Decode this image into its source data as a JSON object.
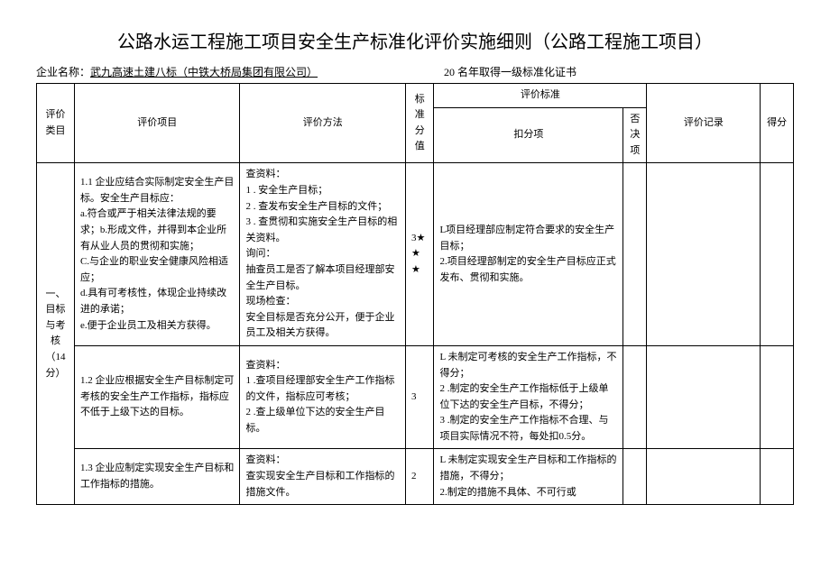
{
  "title": "公路水运工程施工项目安全生产标准化评价实施细则（公路工程施工项目）",
  "header": {
    "companyLabel": "企业名称：",
    "companyName": "武九高速土建八标（中铁大桥局集团有限公司）",
    "certInfo": "20 名年取得一级标准化证书"
  },
  "tableHeaders": {
    "category": "评价类目",
    "item": "评价项目",
    "method": "评价方法",
    "baseScore": "标准分值",
    "criteria": "评价标准",
    "deduct": "扣分项",
    "veto": "否决项",
    "record": "评价记录",
    "points": "得分"
  },
  "category1": {
    "name": "一、目标与考核（14分）",
    "rows": [
      {
        "item": "1.1 企业应结合实际制定安全生产目标。安全生产目标应：\na.符合或严于相关法律法规的要求；b.形成文件，并得到本企业所有从业人员的贯彻和实施；\nC.与企业的职业安全健康风险相适应；\nd.具有可考核性，体现企业持续改进的承诺；\ne.便于企业员工及相关方获得。",
        "method": "查资料：\n1 . 安全生产目标；\n2 . 查发布安全生产目标的文件；\n3 . 查贯彻和实施安全生产目标的相关资料。\n询问：\n抽查员工是否了解本项目经理部安全生产目标。\n现场检查：\n安全目标是否充分公开，便于企业员工及相关方获得。",
        "score": "3★★★",
        "deduct": "L项目经理部应制定符合要求的安全生产目标；\n2.项目经理部制定的安全生产目标应正式发布、贯彻和实施。"
      },
      {
        "item": "1.2 企业应根据安全生产目标制定可考核的安全生产工作指标，指标应不低于上级下达的目标。",
        "method": "查资料：\n1 .查项目经理部安全生产工作指标的文件，指标应可考核；\n2 .查上级单位下达的安全生产目标。",
        "score": "3",
        "deduct": "L 未制定可考核的安全生产工作指标，不得分；\n2 .制定的安全生产工作指标低于上级单位下达的安全生产目标，不得分；\n3 .制定的安全生产工作指标不合理、与项目实际情况不符，每处扣0.5分。"
      },
      {
        "item": "1.3 企业应制定实现安全生产目标和工作指标的措施。",
        "method": "查资料：\n查实现安全生产目标和工作指标的措施文件。",
        "score": "2",
        "deduct": "L 未制定实现安全生产目标和工作指标的措施，不得分；\n2.制定的措施不具体、不可行或"
      }
    ]
  }
}
